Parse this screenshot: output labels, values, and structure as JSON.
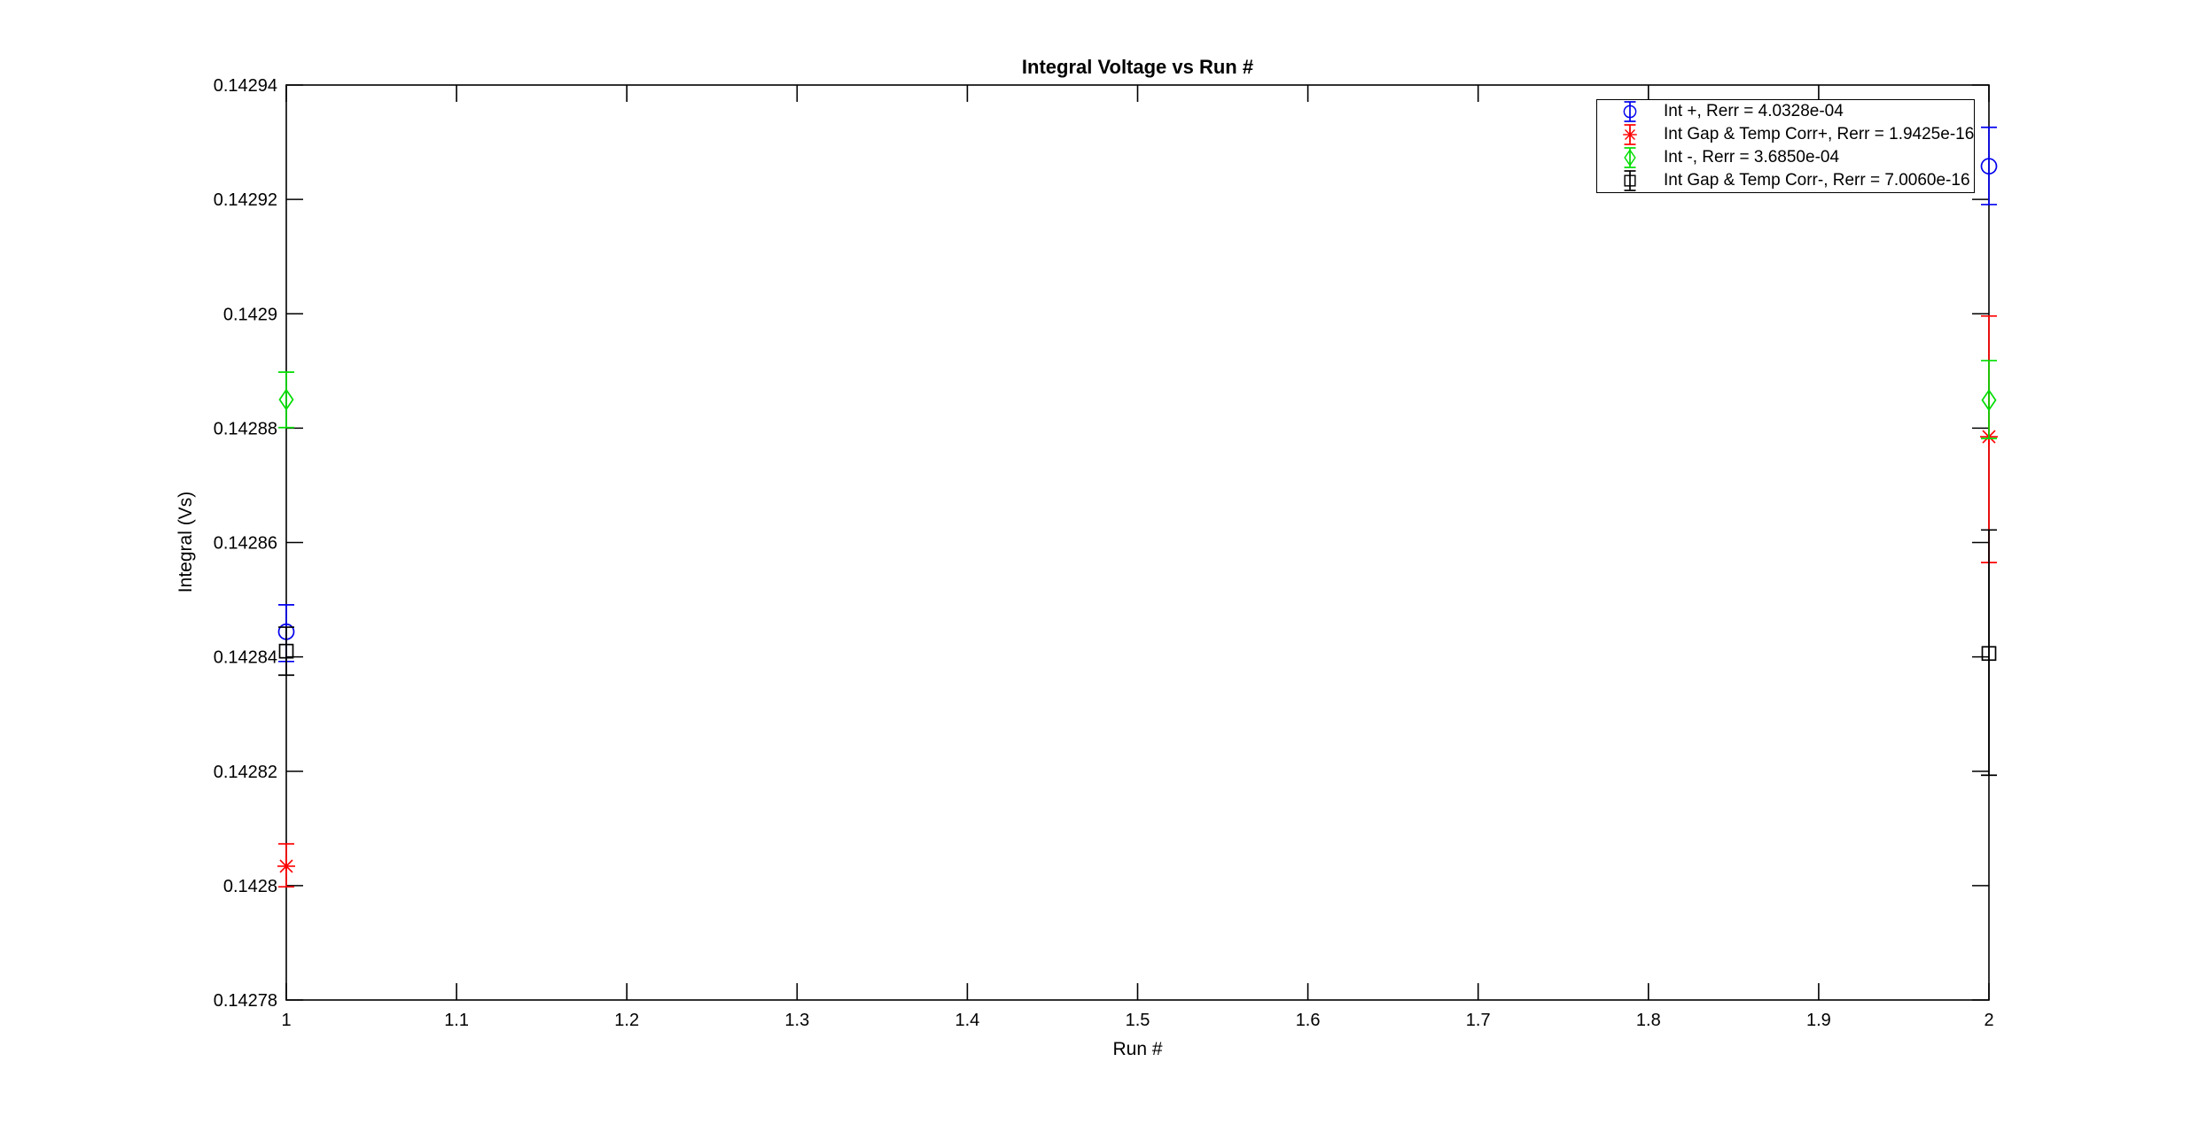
{
  "chart_data": {
    "type": "scatter",
    "subtype": "errorbar",
    "title": "Integral Voltage vs Run #",
    "xlabel": "Run #",
    "ylabel": "Integral (Vs)",
    "xlim": [
      1,
      2
    ],
    "ylim": [
      0.14278,
      0.14294
    ],
    "grid": false,
    "box": true,
    "legend_position": "top-right",
    "xticks": {
      "values": [
        1,
        1.1,
        1.2,
        1.3,
        1.4,
        1.5,
        1.6,
        1.7,
        1.8,
        1.9,
        2
      ],
      "labels": [
        "1",
        "1.1",
        "1.2",
        "1.3",
        "1.4",
        "1.5",
        "1.6",
        "1.7",
        "1.8",
        "1.9",
        "2"
      ]
    },
    "yticks": {
      "values": [
        0.14278,
        0.1428,
        0.14282,
        0.14284,
        0.14286,
        0.14288,
        0.1429,
        0.14292,
        0.14294
      ],
      "labels": [
        "0.14278",
        "0.1428",
        "0.14282",
        "0.14284",
        "0.14286",
        "0.14288",
        "0.1429",
        "0.14292",
        "0.14294"
      ]
    },
    "series": [
      {
        "name": "Int +, Rerr = 4.0328e-04",
        "color": "#0000ee",
        "marker": "circle",
        "points": [
          {
            "x": 1,
            "y": 0.1428444,
            "err_lo": 0.1428392,
            "err_hi": 0.1428491
          },
          {
            "x": 2,
            "y": 0.1429258,
            "err_lo": 0.1429191,
            "err_hi": 0.1429326
          }
        ]
      },
      {
        "name": "Int Gap & Temp Corr+, Rerr = 1.9425e-16",
        "color": "#ff0000",
        "marker": "asterisk",
        "points": [
          {
            "x": 1,
            "y": 0.1428034,
            "err_lo": 0.1427998,
            "err_hi": 0.1428073
          },
          {
            "x": 2,
            "y": 0.1428785,
            "err_lo": 0.1428565,
            "err_hi": 0.1428996
          }
        ]
      },
      {
        "name": "Int -, Rerr = 3.6850e-04",
        "color": "#00dd00",
        "marker": "diamond",
        "points": [
          {
            "x": 1,
            "y": 0.142885,
            "err_lo": 0.1428801,
            "err_hi": 0.1428898
          },
          {
            "x": 2,
            "y": 0.1428849,
            "err_lo": 0.1428782,
            "err_hi": 0.1428918
          }
        ]
      },
      {
        "name": "Int Gap & Temp Corr-, Rerr = 7.0060e-16",
        "color": "#000000",
        "marker": "square",
        "points": [
          {
            "x": 1,
            "y": 0.142841,
            "err_lo": 0.1428368,
            "err_hi": 0.1428452
          },
          {
            "x": 2,
            "y": 0.1428406,
            "err_lo": 0.1428193,
            "err_hi": 0.1428622
          }
        ]
      }
    ]
  }
}
